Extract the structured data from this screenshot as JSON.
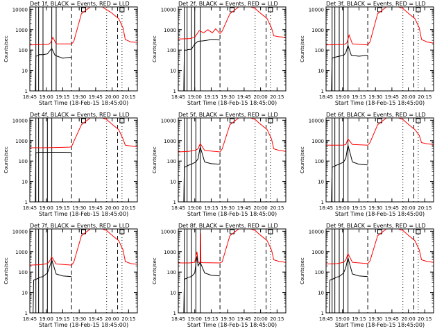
{
  "chart_data": {
    "type": "line",
    "x_tick_labels": [
      "18:45",
      "19:00",
      "19:15",
      "19:30",
      "19:45",
      "20:00",
      "20:15"
    ],
    "y_tick_labels": [
      "1",
      "10",
      "100",
      "1000",
      "10000"
    ],
    "ylabel": "Counts/sec",
    "xlabel": "Start Time (18-Feb-15 18:45:00)",
    "x_range_minutes": [
      0,
      98
    ],
    "ylim": [
      1,
      13000
    ],
    "y_scale": "log",
    "colors": {
      "events": "#000000",
      "lld": "#ff0000"
    },
    "panels": [
      {
        "title": "Det 1f, BLACK = Events, RED = LLD",
        "events": {
          "x": [
            5,
            5.5,
            8,
            8.5,
            12,
            16,
            18,
            20,
            23,
            30,
            38
          ],
          "y": [
            0,
            50,
            55,
            60,
            60,
            65,
            90,
            120,
            55,
            40,
            45
          ]
        },
        "lld": {
          "x": [
            0,
            10,
            17,
            19,
            21,
            24,
            38,
            40,
            47,
            55,
            61,
            64,
            66,
            68,
            74,
            81,
            85,
            87,
            92,
            98
          ],
          "y": [
            180,
            185,
            190,
            230,
            420,
            200,
            200,
            260,
            6000,
            15000,
            15000,
            14000,
            13000,
            11000,
            7000,
            3500,
            1200,
            330,
            250,
            240
          ]
        },
        "solid": [
          5.5,
          8,
          12,
          20,
          24
        ],
        "dashed": [
          38,
          80
        ],
        "dotted": [
          70,
          84
        ],
        "marks": [
          49,
          84
        ]
      },
      {
        "title": "Det 2f, BLACK = Events, RED = LLD",
        "events": {
          "x": [
            5,
            5.5,
            8,
            8.5,
            12,
            15,
            18,
            22,
            26,
            30,
            34,
            38
          ],
          "y": [
            0,
            100,
            100,
            105,
            110,
            200,
            270,
            280,
            300,
            330,
            330,
            310
          ]
        },
        "lld": {
          "x": [
            0,
            10,
            15,
            19,
            23,
            27,
            31,
            34,
            38,
            40,
            47,
            55,
            61,
            64,
            66,
            70,
            74,
            81,
            85,
            87,
            92,
            98
          ],
          "y": [
            350,
            360,
            420,
            900,
            700,
            1000,
            700,
            1100,
            650,
            850,
            6000,
            15000,
            15000,
            14000,
            13000,
            11000,
            7000,
            3500,
            1200,
            500,
            450,
            420
          ]
        },
        "solid": [
          5.5,
          8,
          12,
          15,
          20
        ],
        "dashed": [
          38,
          80
        ],
        "dotted": [
          70,
          84
        ],
        "marks": [
          49,
          84
        ]
      },
      {
        "title": "Det 3f, BLACK = Events, RED = LLD",
        "events": {
          "x": [
            5,
            5.5,
            8,
            8.5,
            12,
            16,
            18,
            20,
            23,
            30,
            38
          ],
          "y": [
            0,
            40,
            45,
            45,
            50,
            55,
            75,
            170,
            55,
            50,
            55
          ]
        },
        "lld": {
          "x": [
            0,
            10,
            17,
            19,
            21,
            24,
            38,
            40,
            47,
            55,
            61,
            64,
            66,
            70,
            74,
            81,
            85,
            87,
            92,
            98
          ],
          "y": [
            180,
            185,
            190,
            230,
            540,
            200,
            180,
            250,
            6000,
            15000,
            15000,
            14000,
            13000,
            11000,
            7000,
            3500,
            1200,
            330,
            250,
            220
          ]
        },
        "solid": [
          5.5,
          8,
          12,
          16,
          20
        ],
        "dashed": [
          38,
          80
        ],
        "dotted": [
          70,
          84
        ],
        "marks": [
          49,
          84
        ]
      },
      {
        "title": "Det 4f, BLACK = Events, RED = LLD",
        "events": {
          "x": [
            5,
            5.5,
            8,
            8.5,
            12,
            20,
            30,
            38
          ],
          "y": [
            0,
            260,
            265,
            270,
            270,
            270,
            270,
            265
          ]
        },
        "lld": {
          "x": [
            0,
            10,
            20,
            30,
            36,
            38,
            40,
            47,
            55,
            61,
            64,
            66,
            70,
            74,
            81,
            85,
            87,
            92,
            98
          ],
          "y": [
            450,
            450,
            460,
            470,
            480,
            500,
            900,
            6000,
            15000,
            15000,
            14000,
            13000,
            11000,
            7000,
            3500,
            1200,
            600,
            550,
            500
          ]
        },
        "solid": [
          5.5,
          8,
          12,
          16,
          20
        ],
        "dashed": [
          38,
          80
        ],
        "dotted": [
          70,
          84
        ],
        "marks": [
          49,
          84
        ]
      },
      {
        "title": "Det 5f, BLACK = Events, RED = LLD",
        "events": {
          "x": [
            5,
            5.5,
            8,
            8.5,
            12,
            16,
            18,
            20,
            24,
            30,
            38
          ],
          "y": [
            0,
            50,
            55,
            60,
            70,
            90,
            130,
            500,
            90,
            75,
            70
          ]
        },
        "lld": {
          "x": [
            0,
            10,
            16,
            18,
            20,
            24,
            38,
            40,
            47,
            55,
            61,
            64,
            66,
            70,
            74,
            81,
            85,
            87,
            92,
            98
          ],
          "y": [
            280,
            300,
            350,
            400,
            720,
            330,
            280,
            400,
            6000,
            15000,
            15000,
            14000,
            13000,
            11000,
            7000,
            3500,
            1200,
            400,
            330,
            300
          ]
        },
        "solid": [
          5.5,
          8,
          12,
          16,
          20
        ],
        "dashed": [
          38,
          80
        ],
        "dotted": [
          70,
          84
        ],
        "marks": [
          49,
          84
        ]
      },
      {
        "title": "Det 6f, BLACK = Events, RED = LLD",
        "events": {
          "x": [
            5,
            5.5,
            8,
            8.5,
            12,
            16,
            18,
            20,
            24,
            30,
            38
          ],
          "y": [
            0,
            50,
            55,
            60,
            70,
            90,
            140,
            600,
            90,
            70,
            65
          ]
        },
        "lld": {
          "x": [
            0,
            10,
            16,
            18,
            20,
            24,
            38,
            40,
            47,
            55,
            61,
            64,
            66,
            70,
            74,
            81,
            85,
            87,
            92,
            98
          ],
          "y": [
            600,
            600,
            610,
            650,
            1200,
            650,
            600,
            800,
            6000,
            15000,
            15000,
            14000,
            13000,
            11000,
            7000,
            3500,
            1800,
            800,
            700,
            650
          ]
        },
        "solid": [
          5.5,
          8,
          12,
          16,
          20
        ],
        "dashed": [
          38,
          80
        ],
        "dotted": [
          70,
          84
        ],
        "marks": [
          49,
          84
        ]
      },
      {
        "title": "Det 7f, BLACK = Events, RED = LLD",
        "events": {
          "x": [
            3,
            3.5,
            8,
            8.5,
            12,
            16,
            18,
            20,
            24,
            30,
            38
          ],
          "y": [
            0,
            40,
            50,
            55,
            60,
            90,
            180,
            400,
            80,
            65,
            60
          ]
        },
        "lld": {
          "x": [
            0,
            10,
            16,
            18,
            20,
            24,
            38,
            40,
            47,
            55,
            61,
            64,
            66,
            70,
            74,
            81,
            85,
            87,
            92,
            98
          ],
          "y": [
            220,
            230,
            260,
            350,
            550,
            250,
            220,
            300,
            6000,
            15000,
            15000,
            14000,
            13000,
            11000,
            7000,
            3500,
            1200,
            330,
            260,
            240
          ]
        },
        "solid": [
          5.5,
          8,
          12,
          16,
          20
        ],
        "dashed": [
          38,
          80
        ],
        "dotted": [
          70,
          84
        ],
        "marks": [
          49,
          84
        ]
      },
      {
        "title": "Det 8f, BLACK = Events, RED = LLD",
        "events": {
          "x": [
            5,
            5.5,
            8,
            8.5,
            12,
            15,
            17,
            18,
            20,
            24,
            30,
            38
          ],
          "y": [
            0,
            45,
            50,
            55,
            60,
            90,
            600,
            200,
            300,
            90,
            70,
            65
          ]
        },
        "lld": {
          "x": [
            0,
            10,
            15,
            17,
            18,
            19,
            20,
            20.3,
            20.6,
            22,
            38,
            40,
            47,
            55,
            61,
            64,
            66,
            70,
            74,
            81,
            85,
            87,
            92,
            98
          ],
          "y": [
            280,
            280,
            300,
            1000,
            300,
            300,
            300,
            8000,
            300,
            290,
            280,
            320,
            6000,
            15000,
            15000,
            14000,
            13000,
            11000,
            7000,
            3500,
            1200,
            400,
            330,
            300
          ]
        },
        "solid": [
          5.5,
          8,
          12,
          16,
          20
        ],
        "dashed": [
          38,
          80
        ],
        "dotted": [
          70,
          84
        ],
        "marks": [
          49,
          84
        ]
      },
      {
        "title": "Det 9f, BLACK = Events, RED = LLD",
        "events": {
          "x": [
            3,
            3.5,
            8,
            8.5,
            12,
            16,
            18,
            20,
            24,
            30,
            38
          ],
          "y": [
            0,
            40,
            50,
            55,
            60,
            90,
            170,
            500,
            80,
            65,
            60
          ]
        },
        "lld": {
          "x": [
            0,
            10,
            16,
            18,
            20,
            24,
            38,
            40,
            47,
            55,
            61,
            64,
            66,
            70,
            74,
            81,
            85,
            87,
            92,
            98
          ],
          "y": [
            250,
            260,
            300,
            400,
            800,
            300,
            260,
            350,
            6000,
            15000,
            15000,
            14000,
            13000,
            11000,
            7000,
            3500,
            1200,
            400,
            330,
            300
          ]
        },
        "solid": [
          5.5,
          8,
          12,
          16,
          20
        ],
        "dashed": [
          38,
          80
        ],
        "dotted": [
          70,
          84
        ],
        "marks": [
          49,
          84
        ]
      }
    ]
  }
}
